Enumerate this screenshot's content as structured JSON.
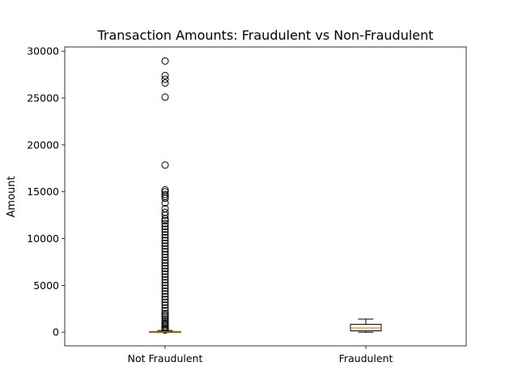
{
  "chart_data": {
    "type": "box",
    "title": "Transaction Amounts: Fraudulent vs Non-Fraudulent",
    "xlabel": "",
    "ylabel": "Amount",
    "ylim": [
      -1450,
      30450
    ],
    "yticks": [
      0,
      5000,
      10000,
      15000,
      20000,
      25000,
      30000
    ],
    "categories": [
      "Not Fraudulent",
      "Fraudulent"
    ],
    "grid": false,
    "boxes": [
      {
        "category": "Not Fraudulent",
        "whisker_low": 0,
        "q1": 5,
        "median": 22,
        "q3": 77,
        "whisker_high": 185,
        "outliers": [
          28950,
          27400,
          27000,
          26600,
          25100,
          17850,
          15200,
          15000,
          14700,
          14500,
          14300,
          13800,
          13200,
          12800,
          12500,
          12100,
          11900,
          11600,
          11300,
          11000,
          10700,
          10400,
          10100,
          9800,
          9500,
          9200,
          8900,
          8600,
          8300,
          8000,
          7700,
          7400,
          7100,
          6800,
          6500,
          6200,
          5900,
          5600,
          5300,
          5000,
          4700,
          4400,
          4100,
          3800,
          3500,
          3200,
          2900,
          2600,
          2300,
          2000,
          1800,
          1600,
          1400,
          1200,
          1000,
          850,
          700,
          550,
          400,
          300,
          230
        ]
      },
      {
        "category": "Fraudulent",
        "whisker_low": 0,
        "q1": 150,
        "median": 450,
        "q3": 850,
        "whisker_high": 1400,
        "outliers": []
      }
    ],
    "colors": {
      "box": "#000000",
      "median": "#ff7f0e",
      "outlier": "#000000"
    }
  }
}
